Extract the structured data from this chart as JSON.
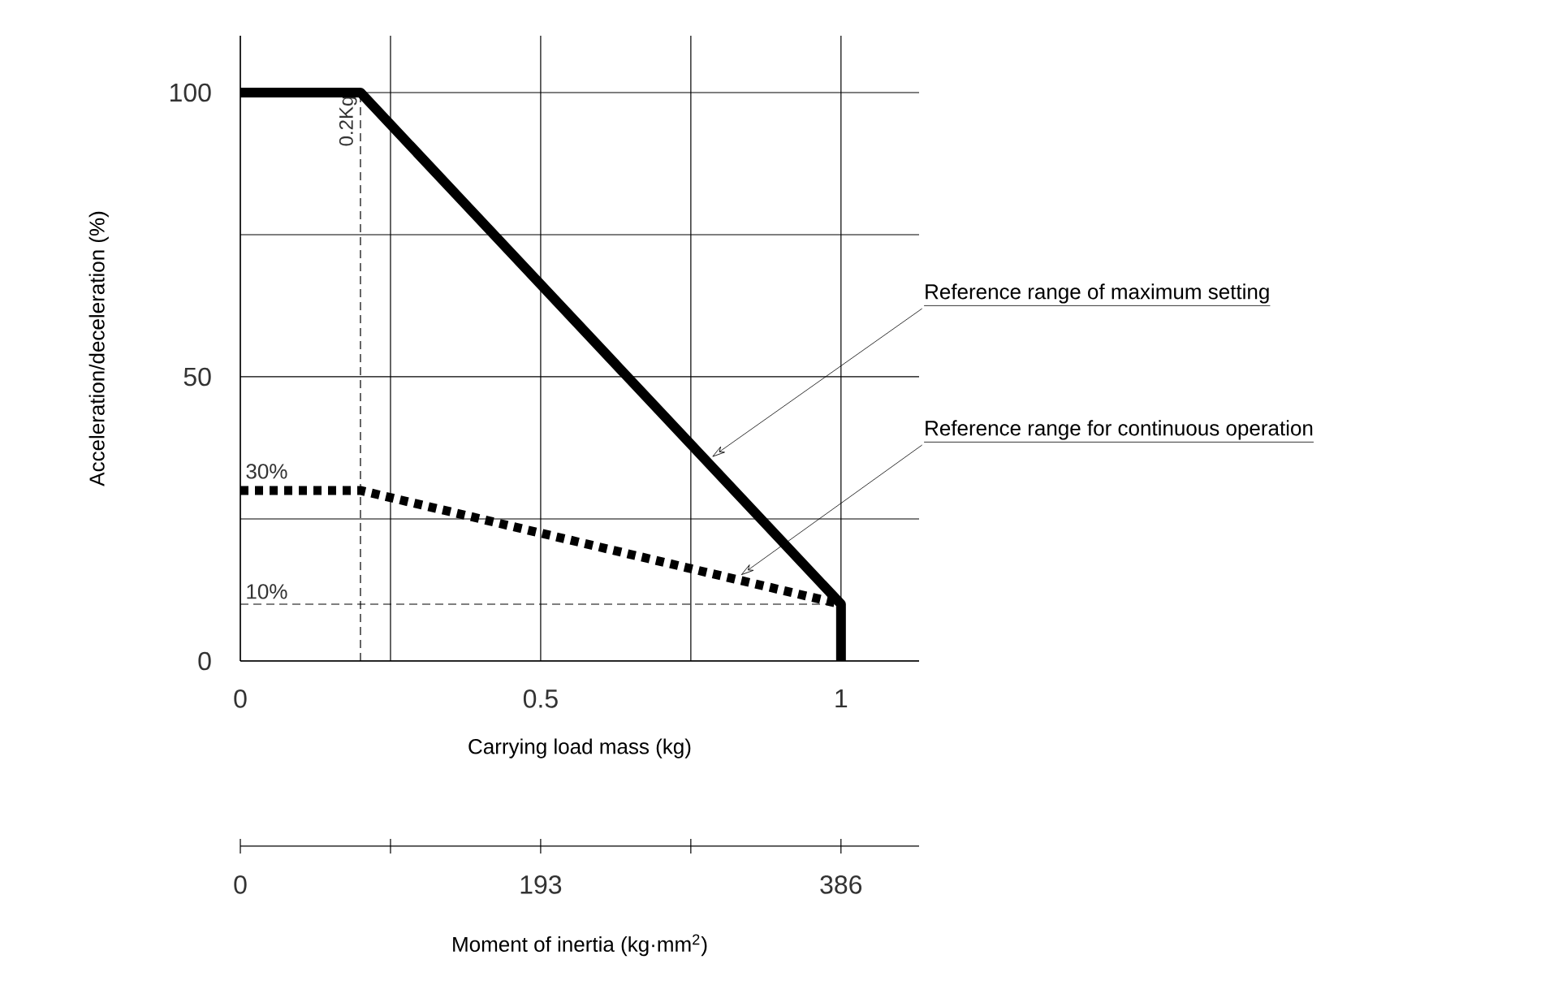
{
  "chart_data": {
    "type": "line",
    "xlabel": "Carrying load mass (kg)",
    "ylabel": "Acceleration/deceleration (%)",
    "x2label": "Moment of inertia (kg·mm$^{2}$)",
    "xlim": [
      0,
      1.13
    ],
    "xticks": [
      0,
      {
        "value": 0.25,
        "label": null
      },
      0.5,
      {
        "value": 0.75,
        "label": null
      },
      1
    ],
    "ylim": [
      0,
      110
    ],
    "yticks": [
      0,
      {
        "value": 25,
        "label": null
      },
      50,
      {
        "value": 75,
        "label": null
      },
      100
    ],
    "x2lim": [
      0,
      436.2
    ],
    "x2ticks": [
      0,
      {
        "value": 96.5,
        "label": null
      },
      193,
      {
        "value": 289.5,
        "label": null
      },
      386
    ],
    "grid": true,
    "series": [
      {
        "name": "Reference range of maximum setting",
        "color": "#000000",
        "line_style": "solid",
        "x": [
          0,
          0.2,
          1,
          1
        ],
        "values": [
          100,
          100,
          10,
          0
        ]
      },
      {
        "name": "Reference range for continuous operation",
        "color": "#000000",
        "line_style": "dotted",
        "x": [
          0,
          0.2,
          1
        ],
        "values": [
          30,
          30,
          10
        ]
      }
    ],
    "ref_lines": [
      {
        "axis": "x",
        "value": 0.2,
        "label": "0.2Kg",
        "line_style": "dashed"
      },
      {
        "axis": "y",
        "value": 10,
        "label": "10%",
        "line_style": "dashed"
      }
    ],
    "annotations": [
      {
        "text": "30%",
        "x": 0,
        "y": 30
      }
    ]
  }
}
